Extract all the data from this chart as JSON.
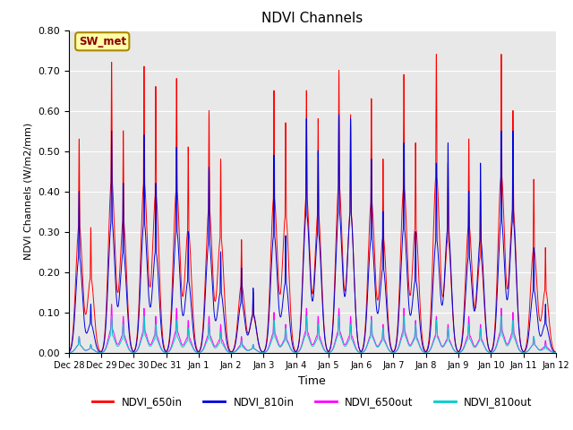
{
  "title": "NDVI Channels",
  "xlabel": "Time",
  "ylabel": "NDVI Channels (W/m2/mm)",
  "ylim": [
    0.0,
    0.8
  ],
  "yticks": [
    0.0,
    0.1,
    0.2,
    0.3,
    0.4,
    0.5,
    0.6,
    0.7,
    0.8
  ],
  "bg_color": "#e8e8e8",
  "annotation_text": "SW_met",
  "colors": {
    "NDVI_650in": "#ff0000",
    "NDVI_810in": "#0000dd",
    "NDVI_650out": "#ff00ff",
    "NDVI_810out": "#00cccc"
  },
  "day_labels": [
    "Dec 28",
    "Dec 29",
    "Dec 30",
    "Dec 31",
    "Jan 1",
    "Jan 2",
    "Jan 3",
    "Jan 4",
    "Jan 5",
    "Jan 6",
    "Jan 7",
    "Jan 8",
    "Jan 9",
    "Jan 10",
    "Jan 11",
    "Jan 12"
  ],
  "n_days": 15,
  "peak1_650in": [
    0.53,
    0.72,
    0.71,
    0.68,
    0.6,
    0.28,
    0.65,
    0.65,
    0.7,
    0.63,
    0.69,
    0.74,
    0.53,
    0.74,
    0.43
  ],
  "peak2_650in": [
    0.31,
    0.55,
    0.66,
    0.51,
    0.48,
    0.15,
    0.57,
    0.58,
    0.59,
    0.48,
    0.52,
    0.47,
    0.4,
    0.6,
    0.26
  ],
  "peak1_810in": [
    0.4,
    0.55,
    0.54,
    0.51,
    0.46,
    0.21,
    0.49,
    0.58,
    0.59,
    0.48,
    0.52,
    0.47,
    0.4,
    0.55,
    0.26
  ],
  "peak2_810in": [
    0.12,
    0.42,
    0.42,
    0.3,
    0.25,
    0.16,
    0.29,
    0.5,
    0.58,
    0.35,
    0.3,
    0.52,
    0.47,
    0.55,
    0.12
  ],
  "peak1_650out": [
    0.04,
    0.12,
    0.11,
    0.11,
    0.09,
    0.04,
    0.1,
    0.11,
    0.11,
    0.09,
    0.11,
    0.09,
    0.09,
    0.11,
    0.04
  ],
  "peak2_650out": [
    0.02,
    0.09,
    0.09,
    0.08,
    0.07,
    0.02,
    0.07,
    0.09,
    0.09,
    0.07,
    0.08,
    0.07,
    0.07,
    0.1,
    0.03
  ],
  "peak1_810out": [
    0.04,
    0.09,
    0.09,
    0.08,
    0.07,
    0.03,
    0.08,
    0.09,
    0.09,
    0.08,
    0.09,
    0.08,
    0.07,
    0.09,
    0.04
  ],
  "peak2_810out": [
    0.02,
    0.07,
    0.07,
    0.06,
    0.05,
    0.02,
    0.06,
    0.07,
    0.07,
    0.06,
    0.07,
    0.06,
    0.06,
    0.08,
    0.02
  ]
}
